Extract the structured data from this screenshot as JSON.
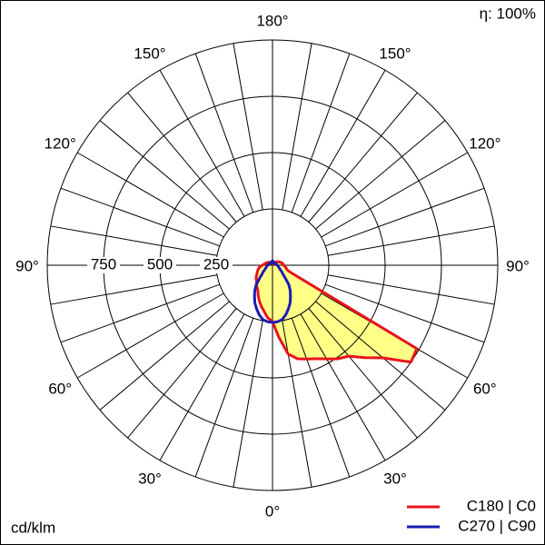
{
  "chart_data": {
    "type": "polar",
    "efficiency": "η: 100%",
    "unit": "cd/klm",
    "rlim": [
      0,
      1000
    ],
    "rticks": [
      250,
      500,
      750
    ],
    "angle_grid": 10,
    "angle_ticks": [
      {
        "value": 0,
        "label": "0°"
      },
      {
        "value": 30,
        "label": "30°"
      },
      {
        "value": 60,
        "label": "60°"
      },
      {
        "value": 90,
        "label": "90°"
      },
      {
        "value": 120,
        "label": "120°"
      },
      {
        "value": 150,
        "label": "150°"
      },
      {
        "value": 180,
        "label": "180°"
      }
    ],
    "angles": [
      0,
      5,
      10,
      15,
      20,
      25,
      30,
      35,
      40,
      45,
      50,
      55,
      60,
      65,
      70,
      75,
      80,
      85,
      90,
      95,
      100,
      105,
      110,
      115,
      120,
      125,
      130,
      135,
      140,
      145,
      150,
      155,
      160,
      165,
      170,
      175,
      180
    ],
    "series": [
      {
        "name": "C180 | C0",
        "color": "#e8141c",
        "fill": "#ffff88",
        "right_values": [
          250,
          320,
          400,
          430,
          443,
          458,
          480,
          507,
          527,
          580,
          640,
          750,
          740,
          132,
          75,
          65,
          60,
          55,
          50,
          48,
          45,
          42,
          38,
          34,
          30,
          27,
          24,
          21,
          18,
          16,
          15,
          12,
          10,
          8,
          7,
          6,
          5
        ],
        "left_values": [
          250,
          235,
          210,
          190,
          170,
          150,
          130,
          120,
          110,
          100,
          95,
          88,
          80,
          75,
          70,
          65,
          60,
          52,
          45,
          40,
          35,
          32,
          30,
          27,
          25,
          23,
          21,
          19,
          17,
          16,
          15,
          12,
          10,
          8,
          7,
          6,
          5
        ]
      },
      {
        "name": "C270 | C90",
        "color": "#1c1cb4",
        "fill": "none",
        "right_values": [
          254,
          252,
          245,
          228,
          206,
          185,
          160,
          137,
          113,
          80,
          60,
          50,
          40,
          35,
          30,
          27,
          25,
          23,
          22,
          20,
          19,
          18,
          17,
          16,
          15,
          14,
          13,
          12,
          12,
          11,
          10,
          11,
          13,
          15,
          17,
          19,
          20
        ],
        "left_values": [
          254,
          252,
          245,
          228,
          206,
          185,
          160,
          137,
          113,
          80,
          60,
          50,
          40,
          35,
          30,
          27,
          25,
          23,
          22,
          20,
          19,
          18,
          17,
          16,
          15,
          14,
          13,
          12,
          12,
          11,
          10,
          11,
          13,
          15,
          17,
          19,
          20
        ]
      }
    ]
  }
}
